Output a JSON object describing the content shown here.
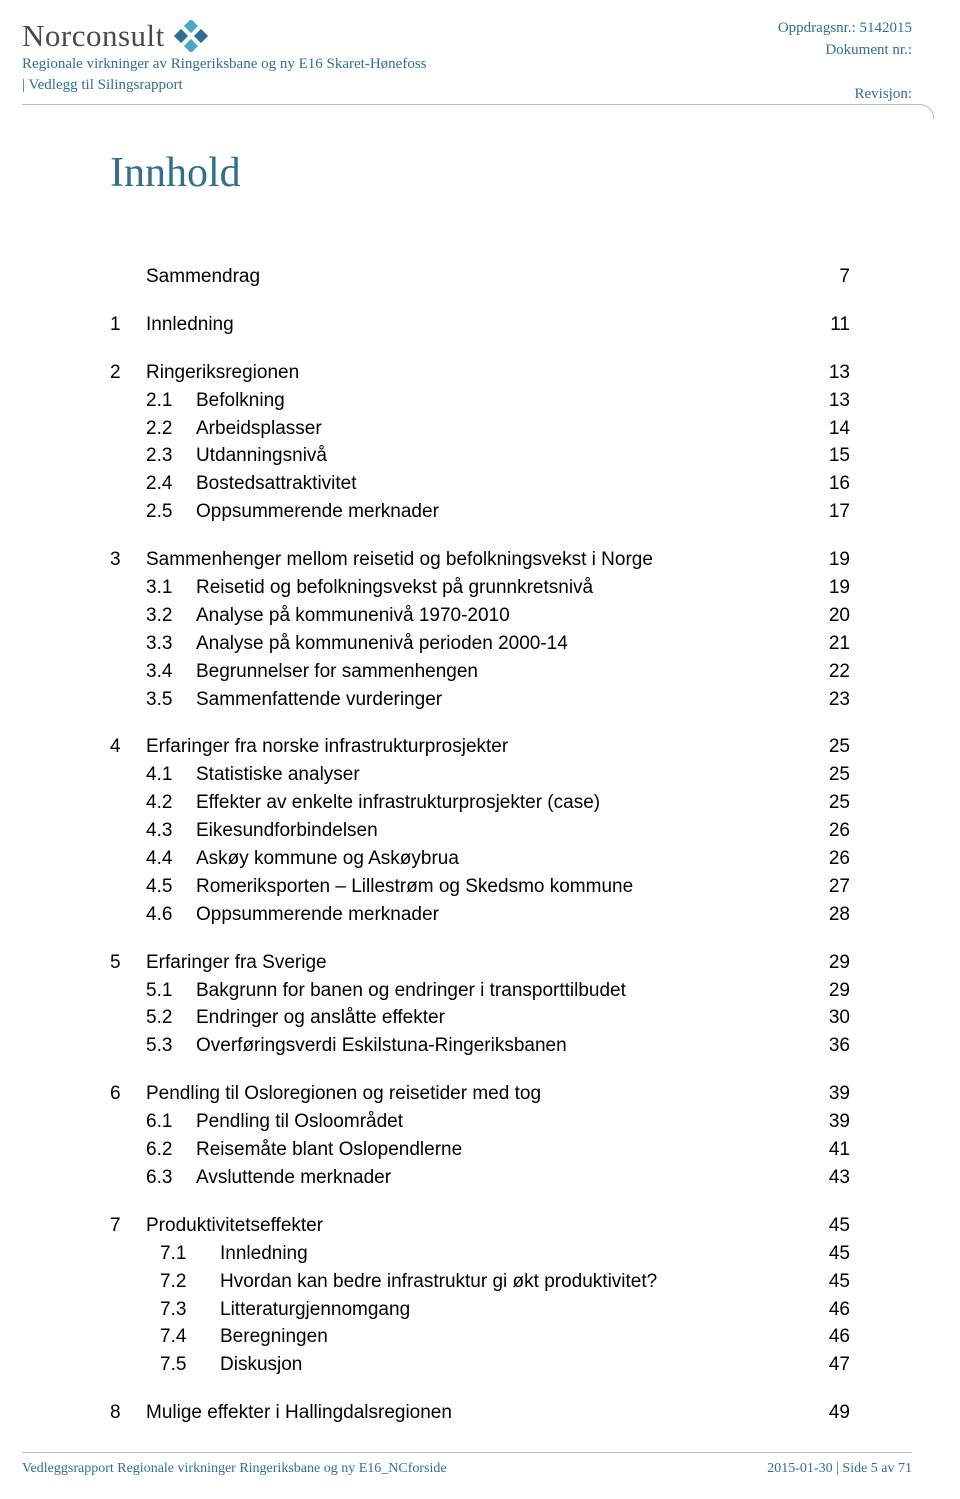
{
  "header": {
    "logo_text": "Norconsult",
    "logo_colors": {
      "diamond_light": "#4aa8c4",
      "diamond_dark": "#2f6f8f"
    },
    "sub1": "Regionale virkninger av Ringeriksbane og ny E16 Skaret-Hønefoss",
    "sub2": "| Vedlegg til Silingsrapport",
    "right1": "Oppdragsnr.: 5142015",
    "right2": "Dokument nr.:",
    "right3": "Revisjon:"
  },
  "title": "Innhold",
  "toc_groups": [
    {
      "top": [
        {
          "num": "",
          "title": "Sammendrag",
          "page": "7"
        }
      ],
      "sub": []
    },
    {
      "top": [
        {
          "num": "1",
          "title": "Innledning",
          "page": "11"
        }
      ],
      "sub": []
    },
    {
      "top": [
        {
          "num": "2",
          "title": "Ringeriksregionen",
          "page": "13"
        }
      ],
      "sub": [
        {
          "num": "2.1",
          "title": "Befolkning",
          "page": "13"
        },
        {
          "num": "2.2",
          "title": "Arbeidsplasser",
          "page": "14"
        },
        {
          "num": "2.3",
          "title": "Utdanningsnivå",
          "page": "15"
        },
        {
          "num": "2.4",
          "title": "Bostedsattraktivitet",
          "page": "16"
        },
        {
          "num": "2.5",
          "title": "Oppsummerende merknader",
          "page": "17"
        }
      ]
    },
    {
      "top": [
        {
          "num": "3",
          "title": "Sammenhenger mellom reisetid og befolkningsvekst i Norge",
          "page": "19"
        }
      ],
      "sub": [
        {
          "num": "3.1",
          "title": "Reisetid og befolkningsvekst på grunnkretsnivå",
          "page": "19"
        },
        {
          "num": "3.2",
          "title": "Analyse på kommunenivå 1970-2010",
          "page": "20"
        },
        {
          "num": "3.3",
          "title": "Analyse på kommunenivå perioden 2000-14",
          "page": "21"
        },
        {
          "num": "3.4",
          "title": "Begrunnelser for sammenhengen",
          "page": "22"
        },
        {
          "num": "3.5",
          "title": "Sammenfattende vurderinger",
          "page": "23"
        }
      ]
    },
    {
      "top": [
        {
          "num": "4",
          "title": "Erfaringer fra norske infrastrukturprosjekter",
          "page": "25"
        }
      ],
      "sub": [
        {
          "num": "4.1",
          "title": "Statistiske analyser",
          "page": "25"
        },
        {
          "num": "4.2",
          "title": "Effekter av enkelte infrastrukturprosjekter (case)",
          "page": "25"
        },
        {
          "num": "4.3",
          "title": "Eikesundforbindelsen",
          "page": "26"
        },
        {
          "num": "4.4",
          "title": "Askøy kommune og Askøybrua",
          "page": "26"
        },
        {
          "num": "4.5",
          "title": "Romeriksporten – Lillestrøm og Skedsmo kommune",
          "page": "27"
        },
        {
          "num": "4.6",
          "title": "Oppsummerende merknader",
          "page": "28"
        }
      ]
    },
    {
      "top": [
        {
          "num": "5",
          "title": "Erfaringer fra Sverige",
          "page": "29"
        }
      ],
      "sub": [
        {
          "num": "5.1",
          "title": "Bakgrunn for banen og endringer i transporttilbudet",
          "page": "29"
        },
        {
          "num": "5.2",
          "title": "Endringer og anslåtte effekter",
          "page": "30"
        },
        {
          "num": "5.3",
          "title": "Overføringsverdi Eskilstuna-Ringeriksbanen",
          "page": "36"
        }
      ]
    },
    {
      "top": [
        {
          "num": "6",
          "title": "Pendling til Osloregionen og reisetider med tog",
          "page": "39"
        }
      ],
      "sub": [
        {
          "num": "6.1",
          "title": "Pendling til Osloområdet",
          "page": "39"
        },
        {
          "num": "6.2",
          "title": "Reisemåte blant Oslopendlerne",
          "page": "41"
        },
        {
          "num": "6.3",
          "title": "Avsluttende merknader",
          "page": "43"
        }
      ]
    },
    {
      "top": [
        {
          "num": "7",
          "title": "Produktivitetseffekter",
          "page": "45"
        }
      ],
      "sub": [
        {
          "num": "7.1",
          "title": "Innledning",
          "page": "45",
          "indent": true
        },
        {
          "num": "7.2",
          "title": "Hvordan kan bedre infrastruktur gi økt produktivitet?",
          "page": "45",
          "indent": true
        },
        {
          "num": "7.3",
          "title": "Litteraturgjennomgang",
          "page": "46",
          "indent": true
        },
        {
          "num": "7.4",
          "title": "Beregningen",
          "page": "46",
          "indent": true
        },
        {
          "num": "7.5",
          "title": "Diskusjon",
          "page": "47",
          "indent": true
        }
      ]
    },
    {
      "top": [
        {
          "num": "8",
          "title": "Mulige effekter i Hallingdalsregionen",
          "page": "49"
        }
      ],
      "sub": []
    }
  ],
  "footer": {
    "left": "Vedleggsrapport Regionale virkninger Ringeriksbane og ny E16_NCforside",
    "right": "2015-01-30 | Side 5 av 71"
  },
  "colors": {
    "brand": "#2f6f8f",
    "logo_text": "#4a4a4a",
    "rule": "#b9b9b9",
    "body_text": "#000000",
    "background": "#ffffff"
  },
  "typography": {
    "logo_fontsize": 31,
    "title_fontsize": 42,
    "body_fontsize": 19,
    "header_fontsize": 15,
    "footer_fontsize": 14
  }
}
